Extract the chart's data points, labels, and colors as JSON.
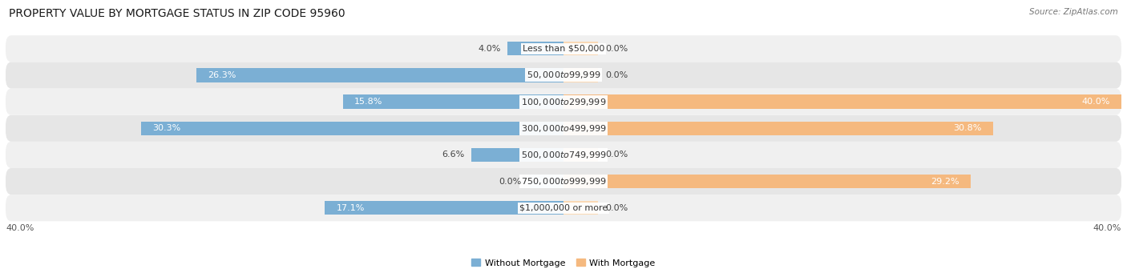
{
  "title": "PROPERTY VALUE BY MORTGAGE STATUS IN ZIP CODE 95960",
  "source": "Source: ZipAtlas.com",
  "categories": [
    "Less than $50,000",
    "$50,000 to $99,999",
    "$100,000 to $299,999",
    "$300,000 to $499,999",
    "$500,000 to $749,999",
    "$750,000 to $999,999",
    "$1,000,000 or more"
  ],
  "without_mortgage": [
    4.0,
    26.3,
    15.8,
    30.3,
    6.6,
    0.0,
    17.1
  ],
  "with_mortgage": [
    0.0,
    0.0,
    40.0,
    30.8,
    0.0,
    29.2,
    0.0
  ],
  "color_without": "#7BAFD4",
  "color_with": "#F5B97F",
  "color_without_pale": "#C5DCF0",
  "color_with_pale": "#FAD9B5",
  "bar_height": 0.52,
  "xlim": 40.0,
  "row_colors": [
    "#F0F0F0",
    "#E6E6E6"
  ],
  "title_fontsize": 10,
  "label_fontsize": 8,
  "tick_fontsize": 8,
  "source_fontsize": 7.5,
  "inside_label_threshold": 12
}
